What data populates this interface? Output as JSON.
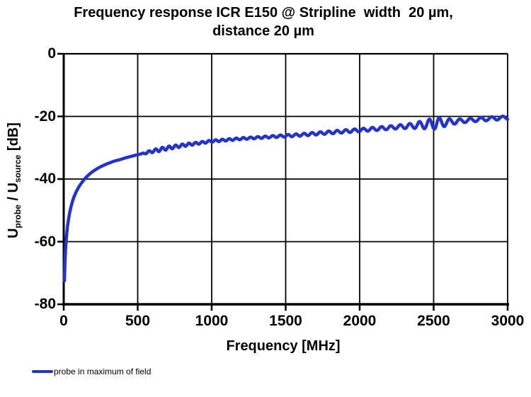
{
  "colors": {
    "background": "#ffffff",
    "text": "#000000",
    "grid": "#000000",
    "series_line": "#2333cc"
  },
  "title": {
    "line1": "Frequency response ICR E150 @ Stripline  width  20 µm,",
    "line2": "distance 20 µm"
  },
  "y_axis": {
    "label_parts": {
      "u1": "U",
      "sub1": "probe",
      "sep": " / U",
      "sub2": "source",
      "unit": " [dB]"
    },
    "ticks": [
      0,
      -20,
      -40,
      -60,
      -80
    ],
    "tick_labels": [
      "0",
      "-20",
      "-40",
      "-60",
      "-80"
    ]
  },
  "x_axis": {
    "label": "Frequency [MHz]",
    "ticks": [
      0,
      500,
      1000,
      1500,
      2000,
      2500,
      3000
    ],
    "tick_labels": [
      "0",
      "500",
      "1000",
      "1500",
      "2000",
      "2500",
      "3000"
    ]
  },
  "legend": {
    "label": "probe in maximum of field",
    "marker_color": "#2333cc"
  },
  "chart_data": {
    "type": "line",
    "title": "Frequency response ICR E150 @ Stripline width 20 µm, distance 20 µm",
    "xlabel": "Frequency [MHz]",
    "ylabel": "Uprobe / Usource [dB]",
    "xlim": [
      0,
      3000
    ],
    "ylim": [
      -80,
      0
    ],
    "grid": true,
    "legend_position": "bottom-left",
    "series": [
      {
        "name": "probe in maximum of field",
        "color": "#2333cc",
        "line_width": 4.5,
        "trend_points": [
          [
            5,
            -72.5
          ],
          [
            6,
            -70
          ],
          [
            8,
            -67
          ],
          [
            10,
            -64.8
          ],
          [
            13,
            -62
          ],
          [
            16,
            -60
          ],
          [
            20,
            -57.6
          ],
          [
            25,
            -55.4
          ],
          [
            30,
            -53.6
          ],
          [
            40,
            -50.8
          ],
          [
            50,
            -48.7
          ],
          [
            60,
            -47
          ],
          [
            70,
            -45.6
          ],
          [
            85,
            -44
          ],
          [
            100,
            -42.7
          ],
          [
            115,
            -41.6
          ],
          [
            132,
            -40.5
          ],
          [
            150,
            -39.5
          ],
          [
            170,
            -38.6
          ],
          [
            190,
            -37.8
          ],
          [
            215,
            -37
          ],
          [
            240,
            -36.3
          ],
          [
            270,
            -35.6
          ],
          [
            300,
            -35
          ],
          [
            340,
            -34.3
          ],
          [
            380,
            -33.8
          ],
          [
            420,
            -33.2
          ],
          [
            460,
            -32.7
          ],
          [
            500,
            -32.2
          ],
          [
            550,
            -31.7
          ],
          [
            600,
            -31.1
          ],
          [
            650,
            -30.6
          ],
          [
            700,
            -30.1
          ],
          [
            750,
            -29.7
          ],
          [
            800,
            -29.3
          ],
          [
            850,
            -28.9
          ],
          [
            900,
            -28.6
          ],
          [
            950,
            -28.25
          ],
          [
            1000,
            -27.9
          ],
          [
            1100,
            -27.5
          ],
          [
            1200,
            -27.1
          ],
          [
            1300,
            -26.8
          ],
          [
            1400,
            -26.5
          ],
          [
            1500,
            -26.2
          ],
          [
            1600,
            -25.9
          ],
          [
            1700,
            -25.5
          ],
          [
            1800,
            -25.1
          ],
          [
            1900,
            -24.75
          ],
          [
            2000,
            -24.4
          ],
          [
            2100,
            -24.0
          ],
          [
            2200,
            -23.6
          ],
          [
            2300,
            -23.2
          ],
          [
            2400,
            -22.8
          ],
          [
            2500,
            -22.3
          ],
          [
            2600,
            -21.8
          ],
          [
            2700,
            -21.4
          ],
          [
            2800,
            -21.0
          ],
          [
            2900,
            -20.65
          ],
          [
            3000,
            -20.4
          ]
        ],
        "ripple": {
          "start_mhz": 520,
          "period_mhz_start": 45,
          "period_mhz_end": 75,
          "amplitude_envelope": [
            [
              520,
              0
            ],
            [
              560,
              0.35
            ],
            [
              650,
              0.6
            ],
            [
              760,
              0.5
            ],
            [
              900,
              0.35
            ],
            [
              1300,
              0.3
            ],
            [
              1700,
              0.45
            ],
            [
              2000,
              0.5
            ],
            [
              2250,
              0.6
            ],
            [
              2350,
              0.8
            ],
            [
              2430,
              1.3
            ],
            [
              2520,
              1.9
            ],
            [
              2560,
              1.4
            ],
            [
              2620,
              0.9
            ],
            [
              2700,
              0.6
            ],
            [
              3000,
              0.55
            ]
          ]
        }
      }
    ]
  }
}
